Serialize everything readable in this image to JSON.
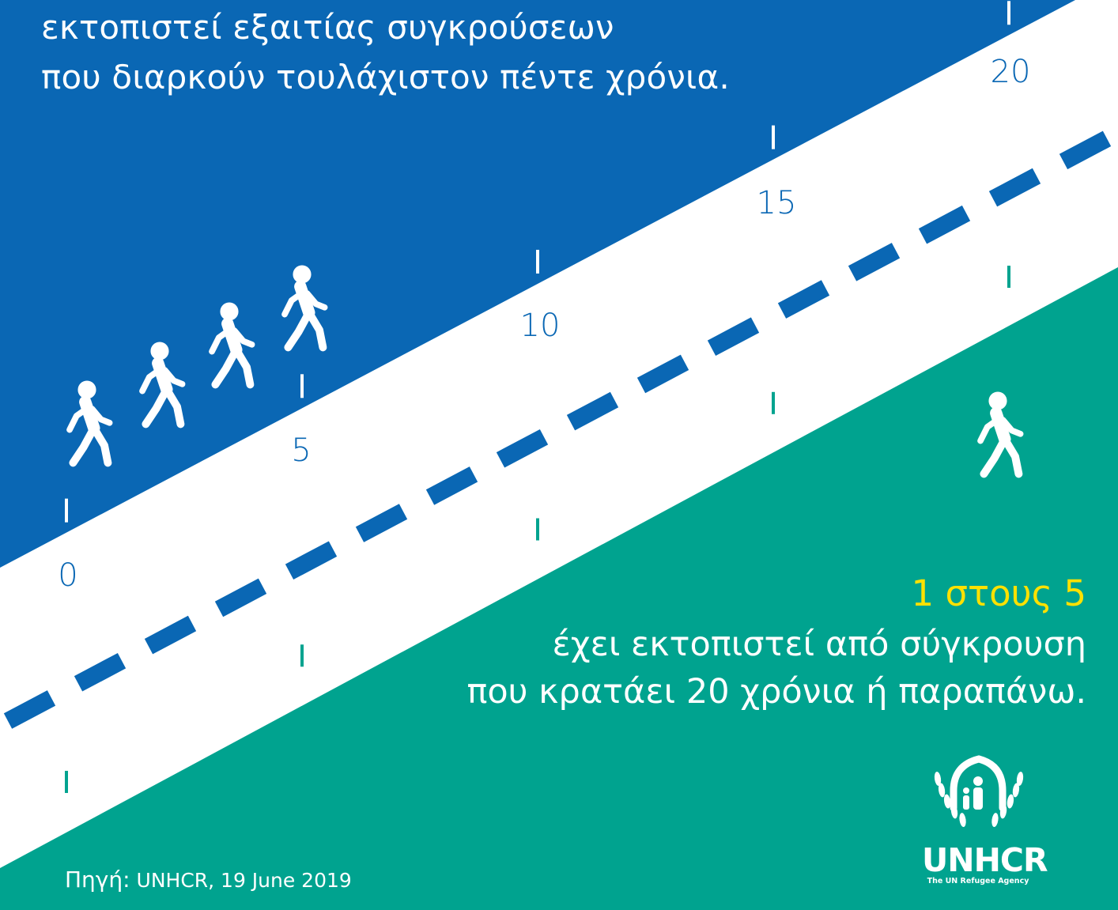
{
  "colors": {
    "blue": "#0a67b4",
    "green": "#00a38f",
    "road": "#ffffff",
    "highlight": "#ffe100"
  },
  "headline": {
    "line1": "εκτοπιστεί εξαιτίας συγκρούσεων",
    "line2": "που διαρκούν τουλάχιστον πέντε χρόνια."
  },
  "timeline": {
    "tick_labels": [
      "0",
      "5",
      "10",
      "15",
      "20"
    ]
  },
  "icons": {
    "walker_group": "walking-person-icon",
    "walker_single": "walking-person-icon",
    "logo": "unhcr-emblem-icon"
  },
  "stat": {
    "highlight": "1 στους 5",
    "line1": "έχει εκτοπιστεί από σύγκρουση",
    "line2": "που κρατάει 20 χρόνια ή παραπάνω."
  },
  "source": {
    "label": "Πηγή:",
    "text": "UNHCR, 19 June 2019"
  },
  "logo": {
    "wordmark": "UNHCR",
    "tagline": "The UN Refugee Agency"
  }
}
